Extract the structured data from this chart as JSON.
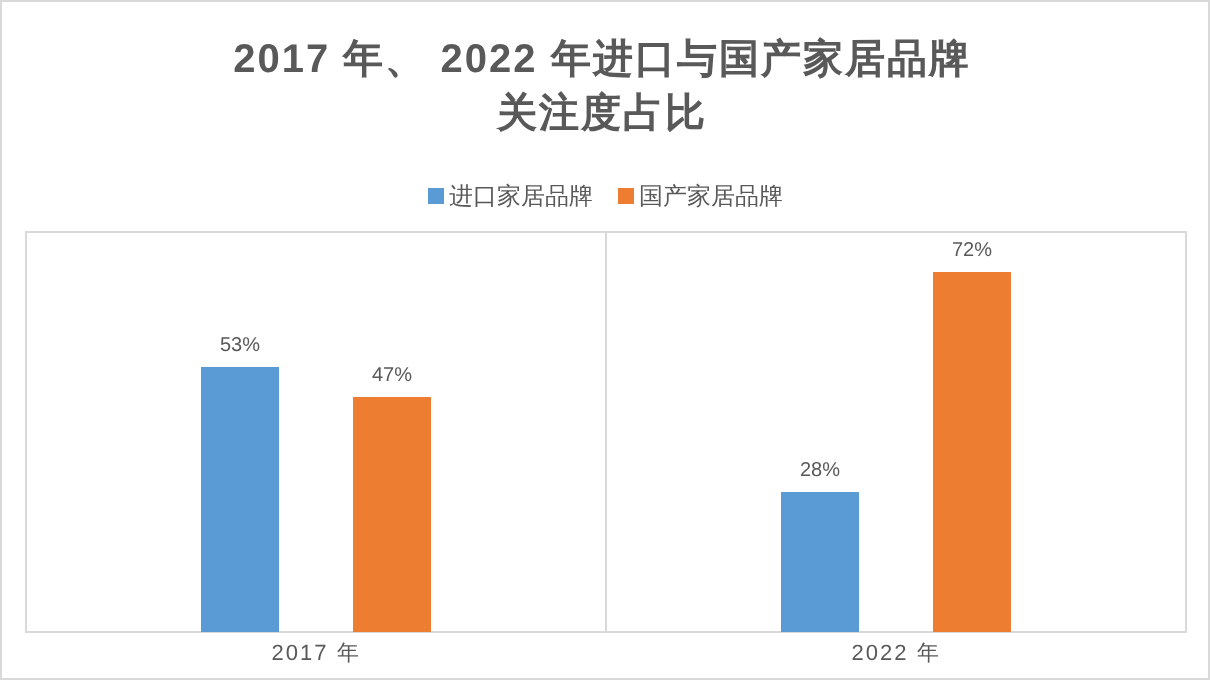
{
  "chart_data": {
    "type": "bar",
    "title": "2017 年、 2022 年进口与国产家居品牌关注度占比",
    "categories": [
      "2017 年",
      "2022 年"
    ],
    "series": [
      {
        "name": "进口家居品牌",
        "color": "#5b9bd5",
        "values": [
          53,
          28
        ],
        "value_labels": [
          "53%",
          "28%"
        ]
      },
      {
        "name": "国产家居品牌",
        "color": "#ed7d31",
        "values": [
          47,
          72
        ],
        "value_labels": [
          "47%",
          "72%"
        ]
      }
    ],
    "ylim": [
      0,
      80
    ],
    "legend": "top",
    "grid": false
  }
}
